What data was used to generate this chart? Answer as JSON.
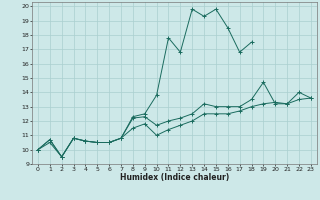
{
  "xlabel": "Humidex (Indice chaleur)",
  "bg_color": "#cde8e8",
  "grid_color": "#aacfcf",
  "line_color": "#1a6b5e",
  "xlim": [
    -0.5,
    23.5
  ],
  "ylim": [
    9,
    20.3
  ],
  "xticks": [
    0,
    1,
    2,
    3,
    4,
    5,
    6,
    7,
    8,
    9,
    10,
    11,
    12,
    13,
    14,
    15,
    16,
    17,
    18,
    19,
    20,
    21,
    22,
    23
  ],
  "yticks": [
    9,
    10,
    11,
    12,
    13,
    14,
    15,
    16,
    17,
    18,
    19,
    20
  ],
  "series": [
    {
      "x": [
        0,
        1,
        2,
        3,
        4,
        5,
        6,
        7,
        8,
        9,
        10,
        11,
        12,
        13,
        14,
        15,
        16,
        17,
        18
      ],
      "y": [
        10.0,
        10.7,
        9.5,
        10.8,
        10.6,
        10.5,
        10.5,
        10.8,
        12.3,
        12.5,
        13.8,
        17.8,
        16.8,
        19.8,
        19.3,
        19.8,
        18.5,
        16.8,
        17.5
      ]
    },
    {
      "x": [
        0,
        1,
        2,
        3,
        4,
        5,
        6,
        7,
        8,
        9,
        10,
        11,
        12,
        13,
        14,
        15,
        16,
        17,
        18,
        19,
        20,
        21,
        22,
        23
      ],
      "y": [
        10.0,
        10.7,
        9.5,
        10.8,
        10.6,
        10.5,
        10.5,
        10.8,
        12.2,
        12.3,
        11.7,
        12.0,
        12.2,
        12.5,
        13.2,
        13.0,
        13.0,
        13.0,
        13.5,
        14.7,
        13.2,
        13.2,
        14.0,
        13.6
      ]
    },
    {
      "x": [
        0,
        1,
        2,
        3,
        4,
        5,
        6,
        7,
        8,
        9,
        10,
        11,
        12,
        13,
        14,
        15,
        16,
        17,
        18,
        19,
        20,
        21,
        22,
        23
      ],
      "y": [
        10.0,
        10.5,
        9.5,
        10.8,
        10.6,
        10.5,
        10.5,
        10.8,
        11.5,
        11.8,
        11.0,
        11.4,
        11.7,
        12.0,
        12.5,
        12.5,
        12.5,
        12.7,
        13.0,
        13.2,
        13.3,
        13.2,
        13.5,
        13.6
      ]
    }
  ]
}
